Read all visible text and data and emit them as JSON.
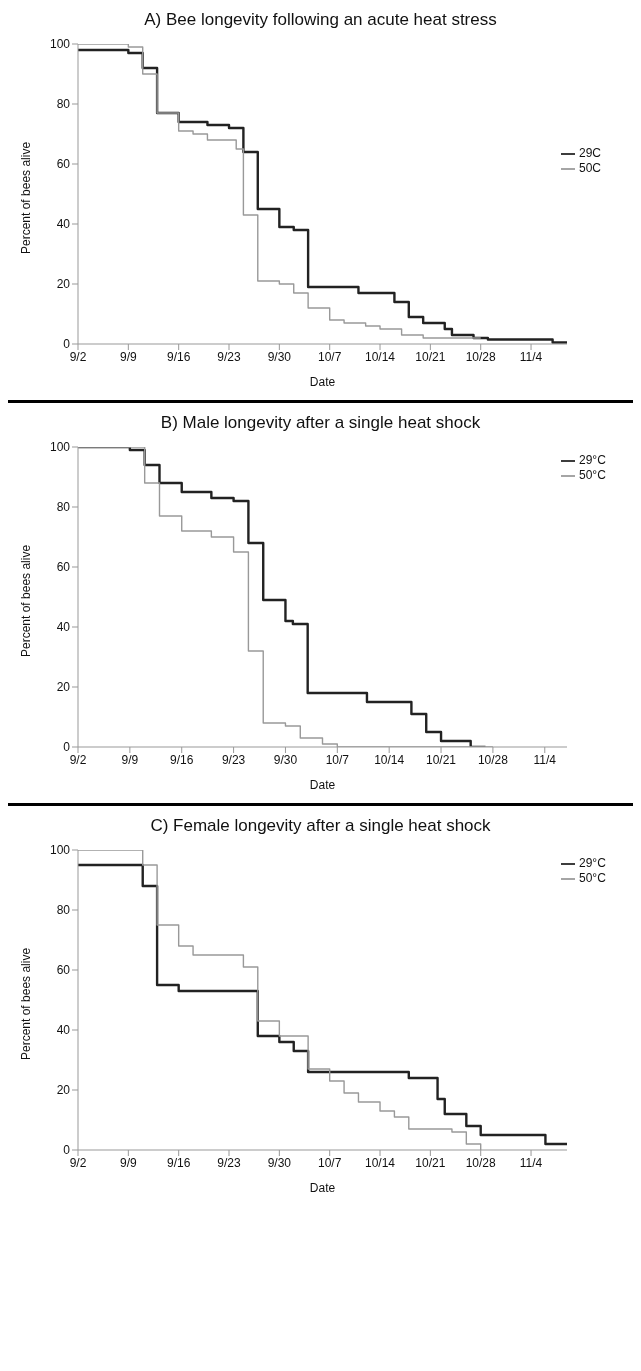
{
  "chart_data": [
    {
      "type": "step",
      "title": "A) Bee longevity following an acute heat stress",
      "xlabel": "Date",
      "ylabel": "Percent of bees alive",
      "xlim": [
        "--09-02",
        "--11-09"
      ],
      "xticks": [
        {
          "value": "--09-02",
          "label": "9/2"
        },
        {
          "value": "--09-09",
          "label": "9/9"
        },
        {
          "value": "--09-16",
          "label": "9/16"
        },
        {
          "value": "--09-23",
          "label": "9/23"
        },
        {
          "value": "--09-30",
          "label": "9/30"
        },
        {
          "value": "--10-07",
          "label": "10/7"
        },
        {
          "value": "--10-14",
          "label": "10/14"
        },
        {
          "value": "--10-21",
          "label": "10/21"
        },
        {
          "value": "--10-28",
          "label": "10/28"
        },
        {
          "value": "--11-04",
          "label": "11/4"
        }
      ],
      "ylim": [
        0,
        100
      ],
      "yticks": [
        0,
        20,
        40,
        60,
        80,
        100
      ],
      "legend": "right",
      "marker": "none",
      "line_style": "solid",
      "series": [
        {
          "name": "29C",
          "color": "#222222",
          "x": [
            "--09-02",
            "--09-09",
            "--09-11",
            "--09-13",
            "--09-16",
            "--09-20",
            "--09-23",
            "--09-25",
            "--09-27",
            "--09-30",
            "--10-02",
            "--10-04",
            "--10-11",
            "--10-16",
            "--10-18",
            "--10-20",
            "--10-23",
            "--10-24",
            "--10-27",
            "--10-29",
            "--11-07",
            "--11-09"
          ],
          "values": [
            98,
            97,
            92,
            77,
            74,
            73,
            72,
            64,
            45,
            39,
            38,
            19,
            17,
            14,
            9,
            7,
            5,
            3,
            2,
            1.5,
            0.5,
            0.5
          ]
        },
        {
          "name": "50C",
          "color": "#999999",
          "x": [
            "--09-02",
            "--09-09",
            "--09-11",
            "--09-13",
            "--09-16",
            "--09-18",
            "--09-20",
            "--09-24",
            "--09-25",
            "--09-27",
            "--09-30",
            "--10-02",
            "--10-04",
            "--10-07",
            "--10-09",
            "--10-12",
            "--10-14",
            "--10-17",
            "--10-20",
            "--10-28"
          ],
          "values": [
            100,
            99,
            90,
            77,
            71,
            70,
            68,
            65,
            43,
            21,
            20,
            17,
            12,
            8,
            7,
            6,
            5,
            3,
            2,
            2
          ]
        }
      ]
    },
    {
      "type": "step",
      "title": "B) Male longevity after a single heat shock",
      "xlabel": "Date",
      "ylabel": "Percent of bees alive",
      "xlim": [
        "--09-02",
        "--11-07"
      ],
      "xticks": [
        {
          "value": "--09-02",
          "label": "9/2"
        },
        {
          "value": "--09-09",
          "label": "9/9"
        },
        {
          "value": "--09-16",
          "label": "9/16"
        },
        {
          "value": "--09-23",
          "label": "9/23"
        },
        {
          "value": "--09-30",
          "label": "9/30"
        },
        {
          "value": "--10-07",
          "label": "10/7"
        },
        {
          "value": "--10-14",
          "label": "10/14"
        },
        {
          "value": "--10-21",
          "label": "10/21"
        },
        {
          "value": "--10-28",
          "label": "10/28"
        },
        {
          "value": "--11-04",
          "label": "11/4"
        }
      ],
      "ylim": [
        0,
        100
      ],
      "yticks": [
        0,
        20,
        40,
        60,
        80,
        100
      ],
      "legend": "top right",
      "marker": "none",
      "line_style": "solid",
      "series": [
        {
          "name": "29°C",
          "color": "#222222",
          "x": [
            "--09-02",
            "--09-09",
            "--09-11",
            "--09-13",
            "--09-16",
            "--09-20",
            "--09-23",
            "--09-25",
            "--09-27",
            "--09-30",
            "--10-01",
            "--10-03",
            "--10-11",
            "--10-17",
            "--10-19",
            "--10-21",
            "--10-25",
            "--10-27"
          ],
          "values": [
            100,
            99,
            94,
            88,
            85,
            83,
            82,
            68,
            49,
            42,
            41,
            18,
            15,
            11,
            5,
            2,
            0,
            0
          ]
        },
        {
          "name": "50°C",
          "color": "#999999",
          "x": [
            "--09-02",
            "--09-11",
            "--09-13",
            "--09-16",
            "--09-20",
            "--09-23",
            "--09-25",
            "--09-27",
            "--09-30",
            "--10-02",
            "--10-05",
            "--10-07",
            "--10-28"
          ],
          "values": [
            100,
            88,
            77,
            72,
            70,
            65,
            32,
            8,
            7,
            3,
            1,
            0,
            0
          ]
        }
      ]
    },
    {
      "type": "step",
      "title": "C) Female longevity after a single heat shock",
      "xlabel": "Date",
      "ylabel": "Percent of bees alive",
      "xlim": [
        "--09-02",
        "--11-09"
      ],
      "xticks": [
        {
          "value": "--09-02",
          "label": "9/2"
        },
        {
          "value": "--09-09",
          "label": "9/9"
        },
        {
          "value": "--09-16",
          "label": "9/16"
        },
        {
          "value": "--09-23",
          "label": "9/23"
        },
        {
          "value": "--09-30",
          "label": "9/30"
        },
        {
          "value": "--10-07",
          "label": "10/7"
        },
        {
          "value": "--10-14",
          "label": "10/14"
        },
        {
          "value": "--10-21",
          "label": "10/21"
        },
        {
          "value": "--10-28",
          "label": "10/28"
        },
        {
          "value": "--11-04",
          "label": "11/4"
        }
      ],
      "ylim": [
        0,
        100
      ],
      "yticks": [
        0,
        20,
        40,
        60,
        80,
        100
      ],
      "legend": "top right",
      "marker": "none",
      "line_style": "solid",
      "series": [
        {
          "name": "29°C",
          "color": "#222222",
          "x": [
            "--09-02",
            "--09-11",
            "--09-13",
            "--09-16",
            "--09-27",
            "--09-30",
            "--10-02",
            "--10-04",
            "--10-18",
            "--10-22",
            "--10-23",
            "--10-26",
            "--10-28",
            "--11-06",
            "--11-09"
          ],
          "values": [
            95,
            88,
            55,
            53,
            38,
            36,
            33,
            26,
            24,
            17,
            12,
            8,
            5,
            2,
            2
          ]
        },
        {
          "name": "50°C",
          "color": "#999999",
          "x": [
            "--09-02",
            "--09-11",
            "--09-13",
            "--09-16",
            "--09-18",
            "--09-25",
            "--09-27",
            "--09-30",
            "--10-04",
            "--10-07",
            "--10-09",
            "--10-11",
            "--10-14",
            "--10-16",
            "--10-18",
            "--10-24",
            "--10-26",
            "--10-28"
          ],
          "values": [
            100,
            95,
            75,
            68,
            65,
            61,
            43,
            38,
            27,
            23,
            19,
            16,
            13,
            11,
            7,
            6,
            2,
            0
          ]
        }
      ]
    }
  ]
}
